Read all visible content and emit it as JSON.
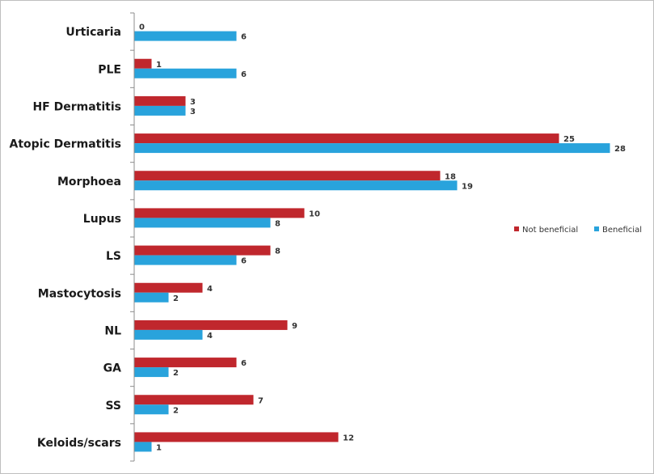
{
  "chart_data": {
    "type": "bar",
    "orientation": "horizontal",
    "title": "",
    "xlabel": "",
    "ylabel": "",
    "categories": [
      "Urticaria",
      "PLE",
      "HF Dermatitis",
      "Atopic Dermatitis",
      "Morphoea",
      "Lupus",
      "LS",
      "Mastocytosis",
      "NL",
      "GA",
      "SS",
      "Keloids/scars"
    ],
    "series": [
      {
        "name": "Not beneficial",
        "color": "#c0272d",
        "values": [
          0,
          1,
          3,
          25,
          18,
          10,
          8,
          4,
          9,
          6,
          7,
          12
        ]
      },
      {
        "name": "Beneficial",
        "color": "#29a3dc",
        "values": [
          6,
          6,
          3,
          28,
          19,
          8,
          6,
          2,
          4,
          2,
          2,
          1
        ]
      }
    ],
    "xlim": [
      0,
      28
    ],
    "grid": false,
    "legend_position": "right"
  }
}
